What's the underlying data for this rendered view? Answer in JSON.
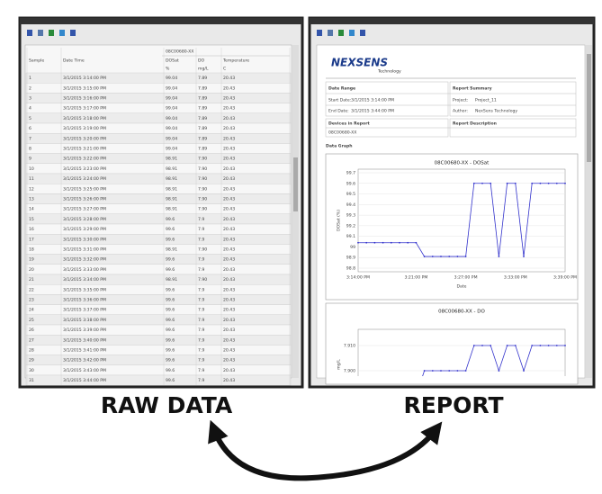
{
  "labels": {
    "left": "RAW DATA",
    "right": "REPORT"
  },
  "table": {
    "device": "08C00680-XX",
    "columns": [
      "Sample",
      "Date Time",
      "DOSat",
      "DO",
      "Temperature"
    ],
    "units": [
      "%",
      "mg/L",
      "C"
    ],
    "rows": [
      [
        "1",
        "3/1/2015 3:14:00 PM",
        "99.04",
        "7.89",
        "20.43"
      ],
      [
        "2",
        "3/1/2015 3:15:00 PM",
        "99.04",
        "7.89",
        "20.43"
      ],
      [
        "3",
        "3/1/2015 3:16:00 PM",
        "99.04",
        "7.89",
        "20.43"
      ],
      [
        "4",
        "3/1/2015 3:17:00 PM",
        "99.04",
        "7.89",
        "20.43"
      ],
      [
        "5",
        "3/1/2015 3:18:00 PM",
        "99.04",
        "7.89",
        "20.43"
      ],
      [
        "6",
        "3/1/2015 3:19:00 PM",
        "99.04",
        "7.89",
        "20.43"
      ],
      [
        "7",
        "3/1/2015 3:20:00 PM",
        "99.04",
        "7.89",
        "20.43"
      ],
      [
        "8",
        "3/1/2015 3:21:00 PM",
        "99.04",
        "7.89",
        "20.43"
      ],
      [
        "9",
        "3/1/2015 3:22:00 PM",
        "98.91",
        "7.90",
        "20.43"
      ],
      [
        "10",
        "3/1/2015 3:23:00 PM",
        "98.91",
        "7.90",
        "20.43"
      ],
      [
        "11",
        "3/1/2015 3:24:00 PM",
        "98.91",
        "7.90",
        "20.43"
      ],
      [
        "12",
        "3/1/2015 3:25:00 PM",
        "98.91",
        "7.90",
        "20.43"
      ],
      [
        "13",
        "3/1/2015 3:26:00 PM",
        "98.91",
        "7.90",
        "20.43"
      ],
      [
        "14",
        "3/1/2015 3:27:00 PM",
        "98.91",
        "7.90",
        "20.43"
      ],
      [
        "15",
        "3/1/2015 3:28:00 PM",
        "99.6",
        "7.9",
        "20.43"
      ],
      [
        "16",
        "3/1/2015 3:29:00 PM",
        "99.6",
        "7.9",
        "20.43"
      ],
      [
        "17",
        "3/1/2015 3:30:00 PM",
        "99.6",
        "7.9",
        "20.43"
      ],
      [
        "18",
        "3/1/2015 3:31:00 PM",
        "98.91",
        "7.90",
        "20.43"
      ],
      [
        "19",
        "3/1/2015 3:32:00 PM",
        "99.6",
        "7.9",
        "20.43"
      ],
      [
        "20",
        "3/1/2015 3:33:00 PM",
        "99.6",
        "7.9",
        "20.43"
      ],
      [
        "21",
        "3/1/2015 3:34:00 PM",
        "98.91",
        "7.90",
        "20.43"
      ],
      [
        "22",
        "3/1/2015 3:35:00 PM",
        "99.6",
        "7.9",
        "20.43"
      ],
      [
        "23",
        "3/1/2015 3:36:00 PM",
        "99.6",
        "7.9",
        "20.43"
      ],
      [
        "24",
        "3/1/2015 3:37:00 PM",
        "99.6",
        "7.9",
        "20.43"
      ],
      [
        "25",
        "3/1/2015 3:38:00 PM",
        "99.6",
        "7.9",
        "20.43"
      ],
      [
        "26",
        "3/1/2015 3:39:00 PM",
        "99.6",
        "7.9",
        "20.43"
      ],
      [
        "27",
        "3/1/2015 3:40:00 PM",
        "99.6",
        "7.9",
        "20.43"
      ],
      [
        "28",
        "3/1/2015 3:41:00 PM",
        "99.6",
        "7.9",
        "20.43"
      ],
      [
        "29",
        "3/1/2015 3:42:00 PM",
        "99.6",
        "7.9",
        "20.43"
      ],
      [
        "30",
        "3/1/2015 3:43:00 PM",
        "99.6",
        "7.9",
        "20.43"
      ],
      [
        "31",
        "3/1/2015 3:44:00 PM",
        "99.6",
        "7.9",
        "20.43"
      ]
    ]
  },
  "report": {
    "logo": "NEXSENS",
    "logo_sub": "Technology",
    "date_range": "Date Range",
    "start_label": "Start Date:",
    "start": "3/1/2015 3:14:00 PM",
    "end_label": "End Date:",
    "end": "3/1/2015 3:44:00 PM",
    "summary": "Report Summary",
    "project_label": "Project:",
    "project": "Project_11",
    "author_label": "Author:",
    "author": "NexSens Technology",
    "devices": "Devices in Report",
    "device": "08C00680-XX",
    "description": "Report Description",
    "data_graph": "Data Graph"
  },
  "chart_data": [
    {
      "type": "line",
      "title": "08C00680-XX - DOSat",
      "x_label": "Date",
      "y_label": "DOSat (%)",
      "color": "#3333cc",
      "categories": [
        "3:14:00 PM",
        null,
        null,
        null,
        null,
        null,
        null,
        "3:21:00 PM",
        null,
        null,
        null,
        null,
        null,
        "3:27:00 PM",
        null,
        null,
        null,
        null,
        null,
        "3:33:00 PM",
        null,
        null,
        null,
        null,
        null,
        "3:39:00 PM"
      ],
      "values": [
        99.04,
        99.04,
        99.04,
        99.04,
        99.04,
        99.04,
        99.04,
        99.04,
        98.91,
        98.91,
        98.91,
        98.91,
        98.91,
        98.91,
        99.6,
        99.6,
        99.6,
        98.91,
        99.6,
        99.6,
        98.91,
        99.6,
        99.6,
        99.6,
        99.6,
        99.6
      ],
      "ylim": [
        98.8,
        99.7
      ],
      "yticks": [
        98.8,
        98.9,
        99.0,
        99.1,
        99.2,
        99.3,
        99.4,
        99.5,
        99.6,
        99.7
      ]
    },
    {
      "type": "line",
      "title": "08C00680-XX - DO",
      "y_label": "mg/L",
      "color": "#3333cc",
      "values": [
        7.89,
        7.89,
        7.89,
        7.89,
        7.89,
        7.89,
        7.89,
        7.89,
        7.9,
        7.9,
        7.9,
        7.9,
        7.9,
        7.9,
        7.91,
        7.91,
        7.91,
        7.9,
        7.91,
        7.91,
        7.9,
        7.91,
        7.91,
        7.91,
        7.91,
        7.91
      ],
      "ylim": [
        7.89,
        7.915
      ],
      "yticks": [
        {
          "value": 7.9,
          "label": "7.900"
        },
        {
          "value": 7.91,
          "label": "7.910"
        }
      ]
    }
  ]
}
